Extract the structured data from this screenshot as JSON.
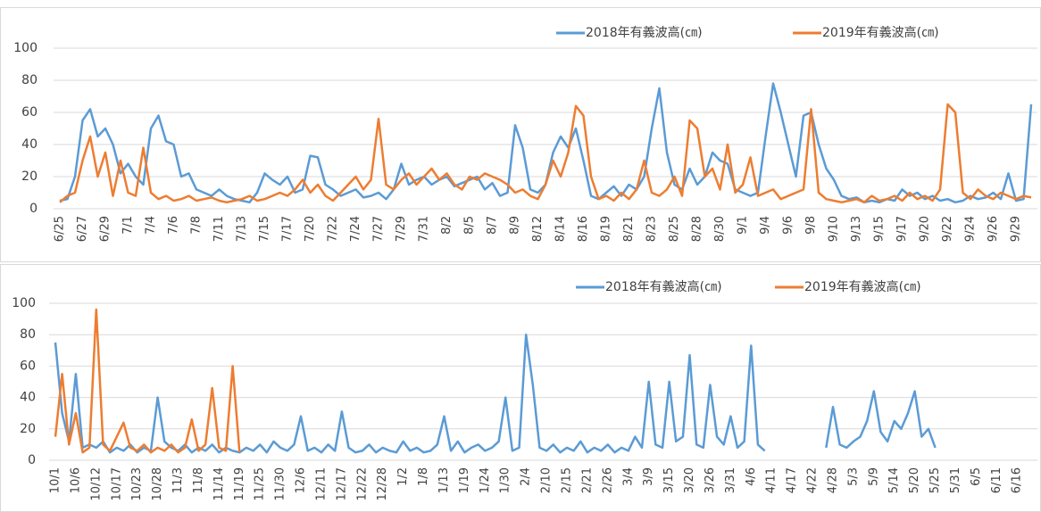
{
  "chart_data": [
    {
      "type": "line",
      "ylim": [
        0,
        100
      ],
      "yticks": [
        0,
        20,
        40,
        60,
        80,
        100
      ],
      "grid": true,
      "legend": "top",
      "categories": [
        "6/25",
        null,
        null,
        "6/27",
        null,
        null,
        "6/29",
        null,
        null,
        "7/1",
        null,
        null,
        "7/4",
        null,
        null,
        "7/6",
        null,
        null,
        "7/8",
        null,
        null,
        "7/11",
        null,
        null,
        "7/13",
        null,
        null,
        "7/15",
        null,
        null,
        "7/17",
        null,
        null,
        "7/20",
        null,
        null,
        "7/22",
        null,
        null,
        "7/24",
        null,
        null,
        "7/27",
        null,
        null,
        "7/29",
        null,
        null,
        "7/31",
        null,
        null,
        "8/2",
        null,
        null,
        "8/5",
        null,
        null,
        "8/7",
        null,
        null,
        "8/9",
        null,
        null,
        "8/12",
        null,
        null,
        "8/14",
        null,
        null,
        "8/16",
        null,
        null,
        "8/19",
        null,
        null,
        "8/21",
        null,
        null,
        "8/23",
        null,
        null,
        "8/25",
        null,
        null,
        "8/28",
        null,
        null,
        "8/30",
        null,
        null,
        "9/1",
        null,
        null,
        "9/4",
        null,
        null,
        "9/6",
        null,
        null,
        "9/8",
        null,
        null,
        "9/10",
        null,
        null,
        "9/13",
        null,
        null,
        "9/15",
        null,
        null,
        "9/17",
        null,
        null,
        "9/20",
        null,
        null,
        "9/22",
        null,
        null,
        "9/24",
        null,
        null,
        "9/26",
        null,
        null,
        "9/29",
        null,
        null
      ],
      "series": [
        {
          "name": "2018年有義波高(㎝)",
          "color": "#5b9bd5",
          "values": [
            5,
            6,
            20,
            55,
            62,
            45,
            50,
            40,
            22,
            28,
            20,
            15,
            50,
            58,
            42,
            40,
            20,
            22,
            12,
            10,
            8,
            12,
            8,
            6,
            5,
            4,
            10,
            22,
            18,
            15,
            20,
            10,
            12,
            33,
            32,
            15,
            12,
            8,
            10,
            12,
            7,
            8,
            10,
            6,
            12,
            28,
            15,
            18,
            20,
            15,
            18,
            20,
            14,
            16,
            18,
            20,
            12,
            16,
            8,
            10,
            52,
            38,
            12,
            10,
            15,
            35,
            45,
            38,
            50,
            30,
            8,
            6,
            10,
            14,
            8,
            15,
            12,
            20,
            50,
            75,
            35,
            15,
            12,
            25,
            15,
            20,
            35,
            30,
            28,
            12,
            10,
            8,
            10,
            45,
            78,
            60,
            40,
            20,
            58,
            60,
            40,
            25,
            18,
            8,
            6,
            7,
            4,
            5,
            4,
            6,
            5,
            12,
            8,
            10,
            6,
            8,
            5,
            6,
            4,
            5,
            8,
            6,
            7,
            10,
            6,
            22,
            5,
            6,
            65
          ]
        },
        {
          "name": "2019年有義波高(㎝)",
          "color": "#ed7d31",
          "values": [
            4,
            8,
            10,
            30,
            45,
            20,
            35,
            8,
            30,
            10,
            8,
            38,
            10,
            6,
            8,
            5,
            6,
            8,
            5,
            6,
            7,
            5,
            4,
            5,
            6,
            8,
            5,
            6,
            8,
            10,
            8,
            12,
            18,
            10,
            15,
            8,
            5,
            10,
            15,
            20,
            12,
            18,
            56,
            15,
            12,
            18,
            22,
            15,
            20,
            25,
            18,
            22,
            15,
            12,
            20,
            18,
            22,
            20,
            18,
            15,
            10,
            12,
            8,
            6,
            15,
            30,
            20,
            35,
            64,
            58,
            20,
            6,
            8,
            5,
            10,
            6,
            12,
            30,
            10,
            8,
            12,
            20,
            8,
            55,
            50,
            20,
            25,
            12,
            40,
            10,
            15,
            32,
            8,
            10,
            12,
            6,
            8,
            10,
            12,
            62,
            10,
            6,
            5,
            4,
            5,
            6,
            4,
            8,
            5,
            6,
            8,
            5,
            10,
            6,
            8,
            5,
            12,
            65,
            60,
            10,
            6,
            12,
            8,
            6,
            10,
            8,
            6,
            8,
            7
          ]
        }
      ]
    },
    {
      "type": "line",
      "ylim": [
        0,
        100
      ],
      "yticks": [
        0,
        20,
        40,
        60,
        80,
        100
      ],
      "grid": true,
      "legend": "top",
      "categories": [
        "10/1",
        null,
        null,
        "10/6",
        null,
        null,
        "10/12",
        null,
        null,
        "10/17",
        null,
        null,
        "10/23",
        null,
        null,
        "10/28",
        null,
        null,
        "11/3",
        null,
        null,
        "11/8",
        null,
        null,
        "11/14",
        null,
        null,
        "11/19",
        null,
        null,
        "11/25",
        null,
        null,
        "11/30",
        null,
        null,
        "12/6",
        null,
        null,
        "12/11",
        null,
        null,
        "12/17",
        null,
        null,
        "12/22",
        null,
        null,
        "12/28",
        null,
        null,
        "1/2",
        null,
        null,
        "1/8",
        null,
        null,
        "1/13",
        null,
        null,
        "1/19",
        null,
        null,
        "1/24",
        null,
        null,
        "1/30",
        null,
        null,
        "2/4",
        null,
        null,
        "2/10",
        null,
        null,
        "2/15",
        null,
        null,
        "2/21",
        null,
        null,
        "2/26",
        null,
        null,
        "3/4",
        null,
        null,
        "3/9",
        null,
        null,
        "3/15",
        null,
        null,
        "3/20",
        null,
        null,
        "3/26",
        null,
        null,
        "3/31",
        null,
        null,
        "4/6",
        null,
        null,
        "4/11",
        null,
        null,
        "4/17",
        null,
        null,
        "4/22",
        null,
        null,
        "4/28",
        null,
        null,
        "5/3",
        null,
        null,
        "5/9",
        null,
        null,
        "5/14",
        null,
        null,
        "5/20",
        null,
        null,
        "5/25",
        null,
        null,
        "5/31",
        null,
        null,
        "6/5",
        null,
        null,
        "6/11",
        null,
        null,
        "6/16",
        null,
        null
      ],
      "series": [
        {
          "name": "2018年有義波高(㎝)",
          "color": "#5b9bd5",
          "values": [
            75,
            30,
            12,
            55,
            8,
            10,
            8,
            12,
            5,
            8,
            6,
            10,
            5,
            8,
            6,
            40,
            12,
            8,
            6,
            10,
            5,
            8,
            6,
            10,
            5,
            8,
            6,
            5,
            8,
            6,
            10,
            5,
            12,
            8,
            6,
            10,
            28,
            6,
            8,
            5,
            10,
            6,
            31,
            8,
            5,
            6,
            10,
            5,
            8,
            6,
            5,
            12,
            6,
            8,
            5,
            6,
            10,
            28,
            6,
            12,
            5,
            8,
            10,
            6,
            8,
            12,
            40,
            6,
            8,
            80,
            48,
            8,
            6,
            10,
            5,
            8,
            6,
            12,
            5,
            8,
            6,
            10,
            5,
            8,
            6,
            15,
            8,
            50,
            10,
            8,
            50,
            12,
            15,
            67,
            10,
            8,
            48,
            15,
            10,
            28,
            8,
            12,
            73,
            10,
            6,
            null,
            null,
            null,
            null,
            null,
            null,
            null,
            null,
            8,
            34,
            10,
            8,
            12,
            15,
            25,
            44,
            18,
            12,
            25,
            20,
            30,
            44,
            15,
            20,
            8,
            null,
            null,
            null,
            null,
            null,
            null,
            null,
            null,
            null,
            null,
            null,
            null,
            null,
            null
          ]
        },
        {
          "name": "2019年有義波高(㎝)",
          "color": "#ed7d31",
          "values": [
            15,
            55,
            10,
            30,
            5,
            8,
            96,
            10,
            6,
            15,
            24,
            8,
            6,
            10,
            5,
            8,
            6,
            10,
            5,
            8,
            26,
            6,
            10,
            46,
            8,
            6,
            60,
            5,
            null,
            null,
            null,
            null,
            null,
            null,
            null,
            null,
            null,
            null,
            null,
            null,
            null,
            null,
            null,
            null,
            null,
            null,
            null,
            null,
            null,
            null,
            null,
            null,
            null,
            null,
            null,
            null,
            null,
            null,
            null,
            null,
            null,
            null,
            null,
            null,
            null,
            null,
            null,
            null,
            null,
            null,
            null,
            null,
            null,
            null,
            null,
            null,
            null,
            null,
            null,
            null,
            null,
            null,
            null,
            null,
            null,
            null,
            null,
            null,
            null,
            null,
            null,
            null,
            null,
            null,
            null,
            null,
            null,
            null,
            null,
            null,
            null,
            null,
            null,
            null,
            null,
            null,
            null,
            null,
            null,
            null,
            null,
            null,
            null,
            null,
            null,
            null,
            null,
            null,
            null,
            null,
            null,
            null,
            null,
            null,
            null,
            null,
            null,
            null,
            null,
            null,
            null,
            null,
            null,
            null,
            null,
            null,
            null,
            null,
            null,
            null,
            null,
            null,
            null,
            null
          ]
        }
      ]
    }
  ]
}
